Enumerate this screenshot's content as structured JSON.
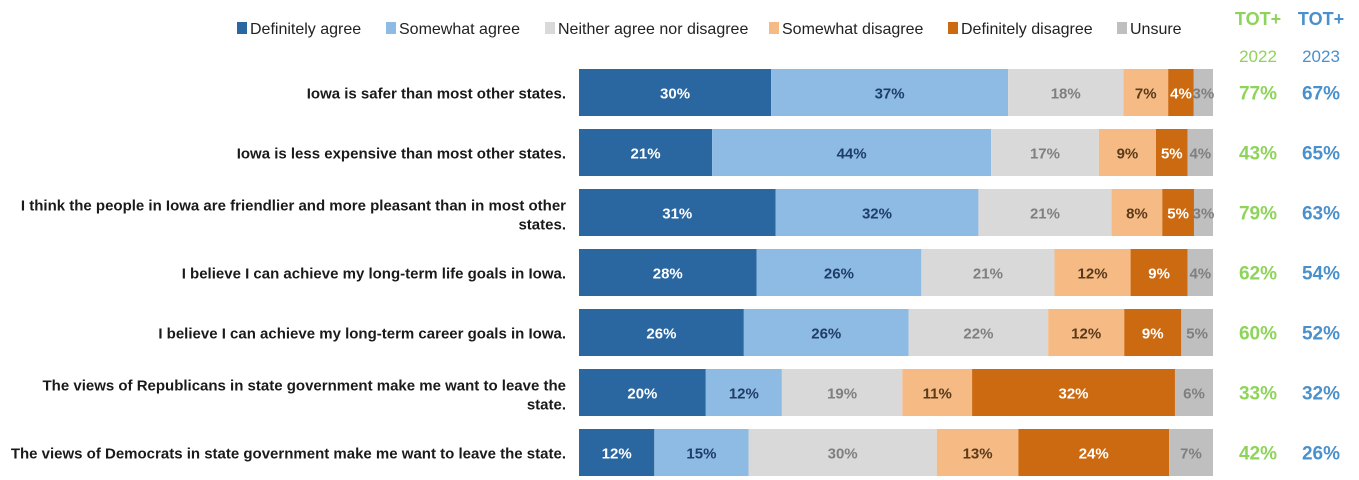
{
  "chart_data": {
    "type": "bar",
    "orientation": "horizontal",
    "stacked": true,
    "value_format": "percent",
    "categories": [
      [
        "Iowa is safer than most other states."
      ],
      [
        "Iowa is less expensive than most other states."
      ],
      [
        "I think the people in Iowa are friendlier and more pleasant than in most other",
        "states."
      ],
      [
        "I believe I can achieve my long-term life goals in Iowa."
      ],
      [
        "I believe I can achieve my long-term career goals in Iowa."
      ],
      [
        "The views of Republicans in state government make me want to leave the",
        "state."
      ],
      [
        "The views of Democrats in state government make me want to leave the state."
      ]
    ],
    "series": [
      {
        "name": "Definitely agree",
        "color": "#2a66a0",
        "label_color": "#ffffff",
        "values": [
          30,
          21,
          31,
          28,
          26,
          20,
          12
        ]
      },
      {
        "name": "Somewhat agree",
        "color": "#8dbbe3",
        "label_color": "#1f3d66",
        "values": [
          37,
          44,
          32,
          26,
          26,
          12,
          15
        ]
      },
      {
        "name": "Neither agree nor disagree",
        "color": "#d9d9d9",
        "label_color": "#7f7f7f",
        "values": [
          18,
          17,
          21,
          21,
          22,
          19,
          30
        ]
      },
      {
        "name": "Somewhat disagree",
        "color": "#f6bb85",
        "label_color": "#5a3a1a",
        "values": [
          7,
          9,
          8,
          12,
          12,
          11,
          13
        ]
      },
      {
        "name": "Definitely disagree",
        "color": "#cc6a12",
        "label_color": "#ffffff",
        "values": [
          4,
          5,
          5,
          9,
          9,
          32,
          24
        ]
      },
      {
        "name": "Unsure",
        "color": "#bfbfbf",
        "label_color": "#7f7f7f",
        "values": [
          3,
          4,
          3,
          4,
          5,
          6,
          7
        ]
      }
    ],
    "totals": [
      {
        "head": "TOT+",
        "year": "2022",
        "color": "#8ed45a",
        "values": [
          "77%",
          "43%",
          "79%",
          "62%",
          "60%",
          "33%",
          "42%"
        ]
      },
      {
        "head": "TOT+",
        "year": "2023",
        "color": "#4a90cc",
        "values": [
          "67%",
          "65%",
          "63%",
          "54%",
          "52%",
          "32%",
          "26%"
        ]
      }
    ],
    "legend_position": "top"
  }
}
